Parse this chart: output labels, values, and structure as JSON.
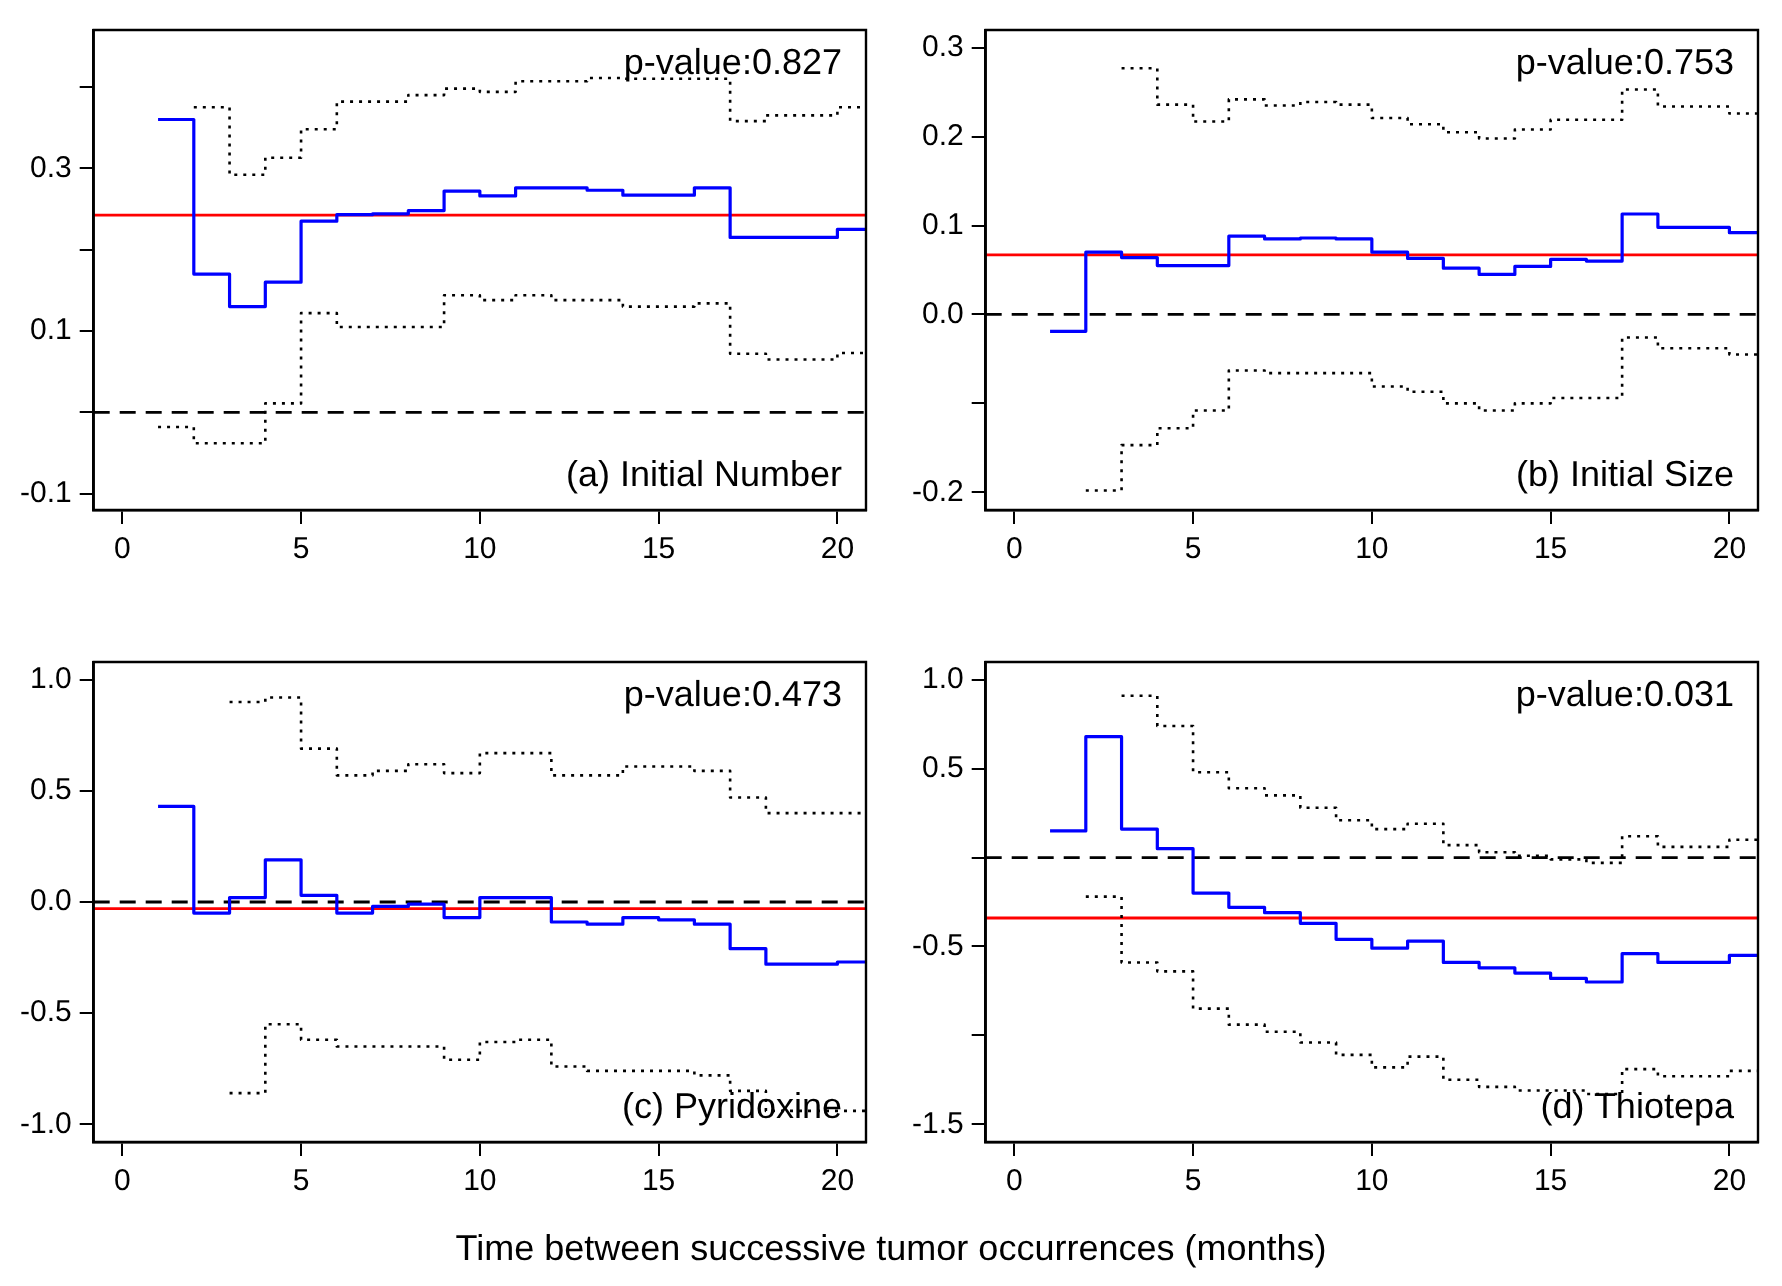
{
  "chart_data": [
    {
      "type": "step",
      "x": [
        1,
        2,
        3,
        4,
        5,
        6,
        7,
        8,
        9,
        10,
        11,
        12,
        13,
        14,
        15,
        16,
        17,
        18,
        19,
        20,
        20.8
      ],
      "xlim": [
        -0.8,
        20.8
      ],
      "xticks": [
        0,
        5,
        10,
        15,
        20
      ],
      "ylim": [
        -0.12,
        0.47
      ],
      "yticks": [
        -0.1,
        {
          "value": 0,
          "label": null
        },
        0.1,
        {
          "value": 0.2,
          "label": null
        },
        0.3,
        {
          "value": 0.4,
          "label": null
        }
      ],
      "marker": "none",
      "annotations": [
        "p-value:0.827",
        "(a) Initial Number"
      ],
      "ref_lines": [
        {
          "axis": "y",
          "value": 0.2425,
          "color": "#ff0000",
          "line_style": "solid"
        },
        {
          "axis": "y",
          "value": 0,
          "color": "#000000",
          "line_style": "dashed"
        }
      ],
      "series": [
        {
          "color": "#0000ff",
          "values": [
            0.36,
            0.17,
            0.13,
            0.16,
            0.235,
            0.243,
            0.244,
            0.248,
            0.272,
            0.266,
            0.276,
            0.276,
            0.273,
            0.267,
            0.267,
            0.276,
            0.215,
            0.215,
            0.215,
            0.225,
            0.225
          ]
        },
        {
          "color": "#000000",
          "line_style": "dotted",
          "values": [
            null,
            0.375,
            0.292,
            0.313,
            0.348,
            0.382,
            0.382,
            0.39,
            0.398,
            0.394,
            0.407,
            0.407,
            0.411,
            0.41,
            0.41,
            0.41,
            0.358,
            0.365,
            0.365,
            0.375,
            0.375
          ]
        },
        {
          "color": "#000000",
          "line_style": "dotted",
          "values": [
            -0.018,
            -0.038,
            -0.038,
            0.011,
            0.122,
            0.105,
            0.105,
            0.105,
            0.144,
            0.138,
            0.144,
            0.138,
            0.138,
            0.13,
            0.13,
            0.134,
            0.072,
            0.065,
            0.065,
            0.073,
            0.073
          ]
        }
      ]
    },
    {
      "type": "step",
      "x": [
        1,
        2,
        3,
        4,
        5,
        6,
        7,
        8,
        9,
        10,
        11,
        12,
        13,
        14,
        15,
        16,
        17,
        18,
        19,
        20,
        20.8
      ],
      "xlim": [
        -0.8,
        20.8
      ],
      "xticks": [
        0,
        5,
        10,
        15,
        20
      ],
      "ylim": [
        -0.22,
        0.32
      ],
      "yticks": [
        {
          "value": -0.2,
          "label": "-0.2"
        },
        {
          "value": -0.1,
          "label": null
        },
        {
          "value": 0,
          "label": "0.0"
        },
        0.1,
        0.2,
        0.3
      ],
      "marker": "none",
      "annotations": [
        "p-value:0.753",
        "(b) Initial Size"
      ],
      "ref_lines": [
        {
          "axis": "y",
          "value": 0.067,
          "color": "#ff0000",
          "line_style": "solid"
        },
        {
          "axis": "y",
          "value": 0,
          "color": "#000000",
          "line_style": "dashed"
        }
      ],
      "series": [
        {
          "color": "#0000ff",
          "values": [
            -0.019,
            0.07,
            0.064,
            0.055,
            0.055,
            0.088,
            0.085,
            0.086,
            0.085,
            0.07,
            0.063,
            0.052,
            0.045,
            0.054,
            0.062,
            0.06,
            0.113,
            0.098,
            0.098,
            0.092,
            0.092
          ]
        },
        {
          "color": "#000000",
          "line_style": "dotted",
          "values": [
            null,
            null,
            0.277,
            0.236,
            0.217,
            0.242,
            0.235,
            0.239,
            0.236,
            0.221,
            0.214,
            0.205,
            0.198,
            0.208,
            0.219,
            0.219,
            0.253,
            0.234,
            0.234,
            0.226,
            0.226
          ]
        },
        {
          "color": "#000000",
          "line_style": "dotted",
          "values": [
            null,
            -0.198,
            -0.147,
            -0.128,
            -0.108,
            -0.063,
            -0.066,
            -0.066,
            -0.066,
            -0.081,
            -0.087,
            -0.1,
            -0.108,
            -0.1,
            -0.094,
            -0.094,
            -0.026,
            -0.038,
            -0.038,
            -0.045,
            -0.045
          ]
        }
      ]
    },
    {
      "type": "step",
      "x": [
        1,
        2,
        3,
        4,
        5,
        6,
        7,
        8,
        9,
        10,
        11,
        12,
        13,
        14,
        15,
        16,
        17,
        18,
        19,
        20,
        20.8
      ],
      "xlim": [
        -0.8,
        20.8
      ],
      "xticks": [
        0,
        5,
        10,
        15,
        20
      ],
      "ylim": [
        -1.08,
        1.08
      ],
      "yticks": [
        {
          "value": -1,
          "label": "-1.0"
        },
        -0.5,
        {
          "value": 0,
          "label": "0.0"
        },
        0.5,
        {
          "value": 1,
          "label": "1.0"
        }
      ],
      "marker": "none",
      "annotations": [
        "p-value:0.473",
        "(c) Pyridoxine"
      ],
      "xlabel": "Time between successive tumor occurrences (months)",
      "ref_lines": [
        {
          "axis": "y",
          "value": -0.03,
          "color": "#ff0000",
          "line_style": "solid"
        },
        {
          "axis": "y",
          "value": 0,
          "color": "#000000",
          "line_style": "dashed"
        }
      ],
      "series": [
        {
          "color": "#0000ff",
          "values": [
            0.43,
            -0.05,
            0.02,
            0.19,
            0.03,
            -0.05,
            -0.02,
            -0.01,
            -0.07,
            0.02,
            0.02,
            -0.09,
            -0.1,
            -0.07,
            -0.08,
            -0.1,
            -0.21,
            -0.28,
            -0.28,
            -0.27,
            -0.27
          ]
        },
        {
          "color": "#000000",
          "line_style": "dotted",
          "values": [
            null,
            null,
            0.9,
            0.92,
            0.69,
            0.57,
            0.59,
            0.62,
            0.58,
            0.67,
            0.67,
            0.57,
            0.57,
            0.61,
            0.61,
            0.59,
            0.47,
            0.4,
            0.4,
            0.4,
            0.4
          ]
        },
        {
          "color": "#000000",
          "line_style": "dotted",
          "values": [
            null,
            null,
            -0.86,
            -0.55,
            -0.62,
            -0.65,
            -0.65,
            -0.65,
            -0.71,
            -0.63,
            -0.62,
            -0.74,
            -0.76,
            -0.76,
            -0.76,
            -0.78,
            -0.85,
            -0.94,
            -0.94,
            -0.94,
            -0.94
          ]
        }
      ]
    },
    {
      "type": "step",
      "x": [
        1,
        2,
        3,
        4,
        5,
        6,
        7,
        8,
        9,
        10,
        11,
        12,
        13,
        14,
        15,
        16,
        17,
        18,
        19,
        20,
        20.8
      ],
      "xlim": [
        -0.8,
        20.8
      ],
      "xticks": [
        0,
        5,
        10,
        15,
        20
      ],
      "ylim": [
        -1.6,
        1.1
      ],
      "yticks": [
        {
          "value": -1.5,
          "label": "-1.5"
        },
        {
          "value": -1,
          "label": null
        },
        {
          "value": -0.5,
          "label": "-0.5"
        },
        {
          "value": 0,
          "label": null
        },
        {
          "value": 0.5,
          "label": "0.5"
        },
        {
          "value": 1,
          "label": "1.0"
        }
      ],
      "marker": "none",
      "annotations": [
        "p-value:0.031",
        "(d) Thiotepa"
      ],
      "ref_lines": [
        {
          "axis": "y",
          "value": -0.34,
          "color": "#ff0000",
          "line_style": "solid"
        },
        {
          "axis": "y",
          "value": 0,
          "color": "#000000",
          "line_style": "dashed"
        }
      ],
      "series": [
        {
          "color": "#0000ff",
          "values": [
            0.15,
            0.68,
            0.16,
            0.05,
            -0.2,
            -0.28,
            -0.31,
            -0.37,
            -0.46,
            -0.51,
            -0.47,
            -0.59,
            -0.62,
            -0.65,
            -0.68,
            -0.7,
            -0.54,
            -0.59,
            -0.59,
            -0.55,
            -0.55
          ]
        },
        {
          "color": "#000000",
          "line_style": "dotted",
          "values": [
            null,
            null,
            0.91,
            0.74,
            0.48,
            0.39,
            0.35,
            0.28,
            0.21,
            0.16,
            0.19,
            0.07,
            0.03,
            0.01,
            -0.01,
            -0.03,
            0.12,
            0.06,
            0.06,
            0.1,
            0.1
          ]
        },
        {
          "color": "#000000",
          "line_style": "dotted",
          "values": [
            null,
            -0.22,
            -0.59,
            -0.64,
            -0.85,
            -0.94,
            -0.98,
            -1.04,
            -1.11,
            -1.18,
            -1.12,
            -1.25,
            -1.29,
            -1.31,
            -1.31,
            -1.33,
            -1.19,
            -1.23,
            -1.23,
            -1.2,
            -1.2
          ]
        }
      ]
    }
  ]
}
